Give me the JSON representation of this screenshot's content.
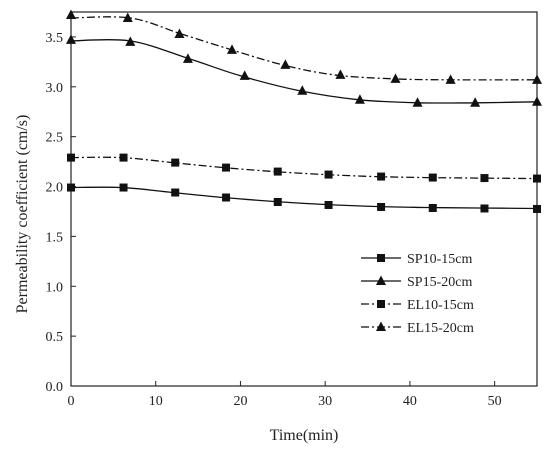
{
  "chart_data": {
    "type": "line",
    "xlabel": "Time(min)",
    "ylabel": "Permeability coefficient (cm/s)",
    "xlim": [
      0,
      55
    ],
    "ylim": [
      0,
      3.75
    ],
    "x_ticks": [
      "0",
      "10",
      "20",
      "30",
      "40",
      "50"
    ],
    "y_ticks": [
      "0.0",
      "0.5",
      "1.0",
      "1.5",
      "2.0",
      "2.5",
      "3.0",
      "3.5"
    ],
    "grid": false,
    "legend_position": "right",
    "series": [
      {
        "name": "SP10-15cm",
        "line_style": "solid",
        "marker": "square",
        "curve": [
          [
            0,
            1.99
          ],
          [
            6,
            1.99
          ],
          [
            12,
            1.94
          ],
          [
            18,
            1.89
          ],
          [
            24,
            1.85
          ],
          [
            30,
            1.82
          ],
          [
            36,
            1.8
          ],
          [
            42,
            1.79
          ],
          [
            48,
            1.785
          ],
          [
            55,
            1.78
          ]
        ],
        "markers": [
          [
            0,
            1.99
          ],
          [
            6.2,
            1.99
          ],
          [
            12.3,
            1.94
          ],
          [
            18.3,
            1.89
          ],
          [
            24.4,
            1.845
          ],
          [
            30.4,
            1.815
          ],
          [
            36.6,
            1.795
          ],
          [
            42.7,
            1.785
          ],
          [
            48.8,
            1.78
          ],
          [
            55,
            1.775
          ]
        ]
      },
      {
        "name": "SP15-20cm",
        "line_style": "solid",
        "marker": "triangle",
        "curve": [
          [
            0,
            3.46
          ],
          [
            7,
            3.46
          ],
          [
            14,
            3.28
          ],
          [
            20,
            3.11
          ],
          [
            27,
            2.96
          ],
          [
            34,
            2.87
          ],
          [
            41,
            2.84
          ],
          [
            48,
            2.84
          ],
          [
            55,
            2.85
          ]
        ],
        "markers": [
          [
            0,
            3.47
          ],
          [
            7,
            3.45
          ],
          [
            13.8,
            3.28
          ],
          [
            20.5,
            3.11
          ],
          [
            27.3,
            2.96
          ],
          [
            34.1,
            2.87
          ],
          [
            40.9,
            2.84
          ],
          [
            47.7,
            2.84
          ],
          [
            55,
            2.85
          ]
        ]
      },
      {
        "name": "EL10-15cm",
        "line_style": "dashdot",
        "marker": "square",
        "curve": [
          [
            0,
            2.29
          ],
          [
            6,
            2.29
          ],
          [
            12,
            2.24
          ],
          [
            18,
            2.19
          ],
          [
            24,
            2.15
          ],
          [
            30,
            2.12
          ],
          [
            36,
            2.1
          ],
          [
            42,
            2.09
          ],
          [
            48,
            2.085
          ],
          [
            55,
            2.08
          ]
        ],
        "markers": [
          [
            0,
            2.29
          ],
          [
            6.2,
            2.29
          ],
          [
            12.3,
            2.24
          ],
          [
            18.3,
            2.19
          ],
          [
            24.4,
            2.15
          ],
          [
            30.4,
            2.12
          ],
          [
            36.6,
            2.1
          ],
          [
            42.7,
            2.09
          ],
          [
            48.8,
            2.085
          ],
          [
            55,
            2.08
          ]
        ]
      },
      {
        "name": "EL15-20cm",
        "line_style": "dashdot",
        "marker": "triangle",
        "curve": [
          [
            0,
            3.69
          ],
          [
            7,
            3.69
          ],
          [
            13,
            3.53
          ],
          [
            19,
            3.37
          ],
          [
            25,
            3.22
          ],
          [
            31,
            3.12
          ],
          [
            38,
            3.08
          ],
          [
            45,
            3.07
          ],
          [
            55,
            3.07
          ]
        ],
        "markers": [
          [
            0,
            3.72
          ],
          [
            6.7,
            3.69
          ],
          [
            12.8,
            3.53
          ],
          [
            19,
            3.37
          ],
          [
            25.3,
            3.22
          ],
          [
            31.8,
            3.12
          ],
          [
            38.3,
            3.08
          ],
          [
            44.8,
            3.07
          ],
          [
            55,
            3.07
          ]
        ]
      }
    ]
  }
}
